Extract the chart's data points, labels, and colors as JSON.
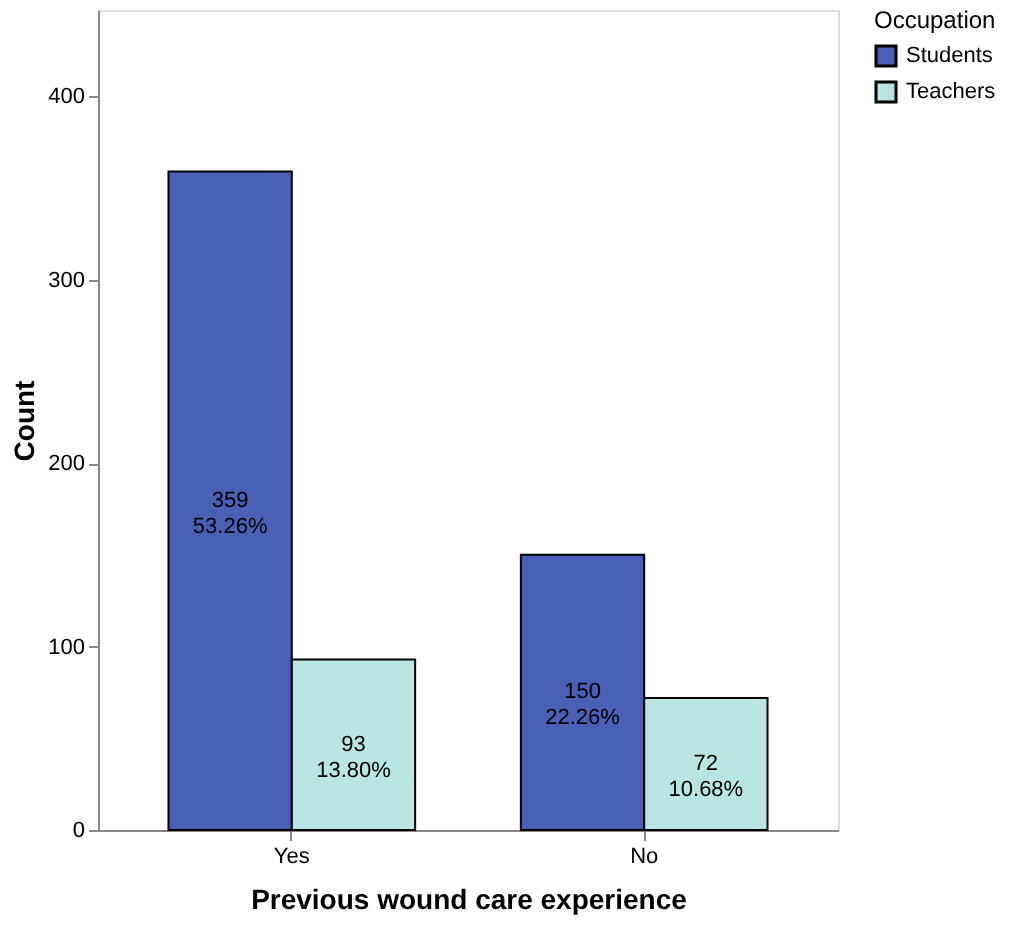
{
  "chart_data": {
    "type": "bar",
    "xlabel": "Previous wound care experience",
    "ylabel": "Count",
    "legend_title": "Occupation",
    "categories": [
      "Yes",
      "No"
    ],
    "series": [
      {
        "name": "Students",
        "color": "#4a5fb6",
        "values": [
          359,
          150
        ],
        "value_labels": [
          "359\n53.26%",
          "150\n22.26%"
        ]
      },
      {
        "name": "Teachers",
        "color": "#b9e5e3",
        "values": [
          93,
          72
        ],
        "value_labels": [
          "93\n13.80%",
          "72\n10.68%"
        ]
      }
    ],
    "ylim": [
      0,
      447
    ],
    "yticks": [
      0,
      100,
      200,
      300,
      400
    ],
    "grid": false,
    "legend": "right"
  }
}
